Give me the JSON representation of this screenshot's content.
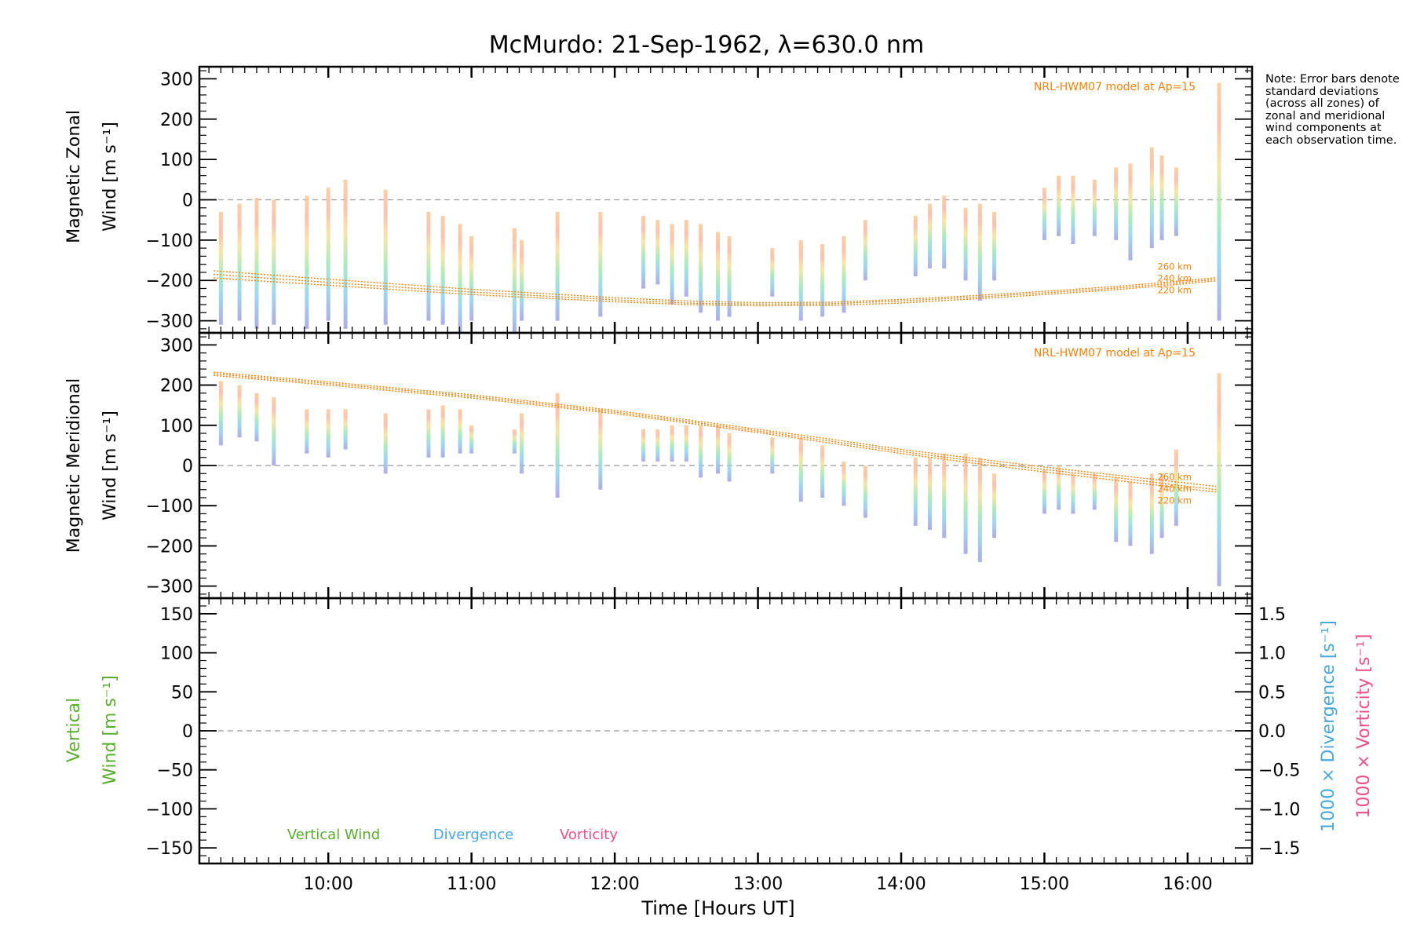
{
  "title": "McMurdo: 21-Sep-1962, λ=630.0 nm",
  "note": "Note: Error bars denote standard deviations (across all zones) of zonal and meridional wind components at each observation time.",
  "colors": {
    "model": "#f5820a",
    "vertical": "#5aad2e",
    "divergence": "#4aa8d8",
    "vorticity": "#ee4f83",
    "zero_line": "#999999"
  },
  "chart_data": [
    {
      "type": "scatter",
      "panel": "zonal",
      "ylabel_line1": "Magnetic Zonal",
      "ylabel_line2": "Wind [m s⁻¹]",
      "ylim": [
        -330,
        330
      ],
      "yticks": [
        300,
        200,
        100,
        0,
        -100,
        -200,
        -300
      ],
      "ytick_labels": [
        "300",
        "200",
        "100",
        "0",
        "−100",
        "−200",
        "−300"
      ],
      "model_label": "NRL-HWM07 model at Ap=15",
      "model_curve_labels": [
        "260 km",
        "240 km",
        "220 km"
      ],
      "model_curves": [
        {
          "name": "260 km",
          "x": [
            9.2,
            10,
            11,
            12,
            12.5,
            13,
            13.5,
            14,
            14.5,
            15,
            15.5,
            16,
            16.2
          ],
          "y": [
            -176,
            -197,
            -222,
            -243,
            -251,
            -255,
            -254,
            -247,
            -238,
            -227,
            -215,
            -200,
            -193
          ]
        },
        {
          "name": "240 km",
          "x": [
            9.2,
            10,
            11,
            12,
            12.5,
            13,
            13.5,
            14,
            14.5,
            15,
            15.5,
            16,
            16.2
          ],
          "y": [
            -185,
            -205,
            -229,
            -248,
            -256,
            -259,
            -258,
            -251,
            -242,
            -231,
            -219,
            -204,
            -197
          ]
        },
        {
          "name": "220 km",
          "x": [
            9.2,
            10,
            11,
            12,
            12.5,
            13,
            13.5,
            14,
            14.5,
            15,
            15.5,
            16,
            16.2
          ],
          "y": [
            -194,
            -212,
            -235,
            -253,
            -260,
            -263,
            -262,
            -256,
            -246,
            -235,
            -223,
            -208,
            -201
          ]
        }
      ],
      "observations": [
        {
          "t": 9.25,
          "low": -310,
          "high": -30
        },
        {
          "t": 9.38,
          "low": -300,
          "high": -10
        },
        {
          "t": 9.5,
          "low": -320,
          "high": 5
        },
        {
          "t": 9.62,
          "low": -310,
          "high": 0
        },
        {
          "t": 9.85,
          "low": -320,
          "high": 10
        },
        {
          "t": 10.0,
          "low": -300,
          "high": 30
        },
        {
          "t": 10.12,
          "low": -320,
          "high": 50
        },
        {
          "t": 10.4,
          "low": -310,
          "high": 25
        },
        {
          "t": 10.7,
          "low": -300,
          "high": -30
        },
        {
          "t": 10.8,
          "low": -310,
          "high": -40
        },
        {
          "t": 10.92,
          "low": -330,
          "high": -60
        },
        {
          "t": 11.0,
          "low": -300,
          "high": -90
        },
        {
          "t": 11.3,
          "low": -330,
          "high": -70
        },
        {
          "t": 11.35,
          "low": -300,
          "high": -100
        },
        {
          "t": 11.6,
          "low": -300,
          "high": -30
        },
        {
          "t": 11.9,
          "low": -290,
          "high": -30
        },
        {
          "t": 12.2,
          "low": -220,
          "high": -40
        },
        {
          "t": 12.3,
          "low": -210,
          "high": -50
        },
        {
          "t": 12.4,
          "low": -260,
          "high": -60
        },
        {
          "t": 12.5,
          "low": -240,
          "high": -50
        },
        {
          "t": 12.6,
          "low": -280,
          "high": -60
        },
        {
          "t": 12.72,
          "low": -300,
          "high": -80
        },
        {
          "t": 12.8,
          "low": -290,
          "high": -90
        },
        {
          "t": 13.1,
          "low": -240,
          "high": -120
        },
        {
          "t": 13.3,
          "low": -300,
          "high": -100
        },
        {
          "t": 13.45,
          "low": -290,
          "high": -110
        },
        {
          "t": 13.6,
          "low": -280,
          "high": -90
        },
        {
          "t": 13.75,
          "low": -200,
          "high": -50
        },
        {
          "t": 14.1,
          "low": -190,
          "high": -40
        },
        {
          "t": 14.2,
          "low": -170,
          "high": -10
        },
        {
          "t": 14.3,
          "low": -170,
          "high": 10
        },
        {
          "t": 14.45,
          "low": -200,
          "high": -20
        },
        {
          "t": 14.55,
          "low": -250,
          "high": -10
        },
        {
          "t": 14.65,
          "low": -200,
          "high": -30
        },
        {
          "t": 15.0,
          "low": -100,
          "high": 30
        },
        {
          "t": 15.1,
          "low": -90,
          "high": 60
        },
        {
          "t": 15.2,
          "low": -110,
          "high": 60
        },
        {
          "t": 15.35,
          "low": -90,
          "high": 50
        },
        {
          "t": 15.5,
          "low": -100,
          "high": 80
        },
        {
          "t": 15.6,
          "low": -150,
          "high": 90
        },
        {
          "t": 15.75,
          "low": -120,
          "high": 130
        },
        {
          "t": 15.82,
          "low": -100,
          "high": 110
        },
        {
          "t": 15.92,
          "low": -90,
          "high": 80
        },
        {
          "t": 16.22,
          "low": -300,
          "high": 290
        }
      ]
    },
    {
      "type": "scatter",
      "panel": "meridional",
      "ylabel_line1": "Magnetic Meridional",
      "ylabel_line2": "Wind [m s⁻¹]",
      "ylim": [
        -330,
        330
      ],
      "yticks": [
        300,
        200,
        100,
        0,
        -100,
        -200,
        -300
      ],
      "ytick_labels": [
        "300",
        "200",
        "100",
        "0",
        "−100",
        "−200",
        "−300"
      ],
      "model_label": "NRL-HWM07 model at Ap=15",
      "model_curve_labels": [
        "260 km",
        "240 km",
        "220 km"
      ],
      "model_curves": [
        {
          "name": "260 km",
          "x": [
            9.2,
            10,
            11,
            12,
            12.5,
            13,
            13.5,
            14,
            14.5,
            15,
            15.5,
            16,
            16.2
          ],
          "y": [
            232,
            208,
            176,
            137,
            114,
            90,
            66,
            40,
            18,
            -4,
            -24,
            -44,
            -52
          ]
        },
        {
          "name": "240 km",
          "x": [
            9.2,
            10,
            11,
            12,
            12.5,
            13,
            13.5,
            14,
            14.5,
            15,
            15.5,
            16,
            16.2
          ],
          "y": [
            228,
            204,
            172,
            133,
            110,
            86,
            61,
            35,
            12,
            -10,
            -30,
            -52,
            -60
          ]
        },
        {
          "name": "220 km",
          "x": [
            9.2,
            10,
            11,
            12,
            12.5,
            13,
            13.5,
            14,
            14.5,
            15,
            15.5,
            16,
            16.2
          ],
          "y": [
            224,
            200,
            168,
            129,
            106,
            82,
            56,
            30,
            6,
            -16,
            -37,
            -58,
            -66
          ]
        }
      ],
      "observations": [
        {
          "t": 9.25,
          "low": 50,
          "high": 210
        },
        {
          "t": 9.38,
          "low": 70,
          "high": 200
        },
        {
          "t": 9.5,
          "low": 60,
          "high": 180
        },
        {
          "t": 9.62,
          "low": 0,
          "high": 170
        },
        {
          "t": 9.85,
          "low": 30,
          "high": 140
        },
        {
          "t": 10.0,
          "low": 20,
          "high": 140
        },
        {
          "t": 10.12,
          "low": 40,
          "high": 140
        },
        {
          "t": 10.4,
          "low": -20,
          "high": 130
        },
        {
          "t": 10.7,
          "low": 20,
          "high": 140
        },
        {
          "t": 10.8,
          "low": 20,
          "high": 150
        },
        {
          "t": 10.92,
          "low": 30,
          "high": 140
        },
        {
          "t": 11.0,
          "low": 30,
          "high": 100
        },
        {
          "t": 11.3,
          "low": 30,
          "high": 90
        },
        {
          "t": 11.35,
          "low": -20,
          "high": 130
        },
        {
          "t": 11.6,
          "low": -80,
          "high": 180
        },
        {
          "t": 11.9,
          "low": -60,
          "high": 140
        },
        {
          "t": 12.2,
          "low": 10,
          "high": 90
        },
        {
          "t": 12.3,
          "low": 10,
          "high": 90
        },
        {
          "t": 12.4,
          "low": 10,
          "high": 100
        },
        {
          "t": 12.5,
          "low": 10,
          "high": 100
        },
        {
          "t": 12.6,
          "low": -30,
          "high": 100
        },
        {
          "t": 12.72,
          "low": -20,
          "high": 100
        },
        {
          "t": 12.8,
          "low": -40,
          "high": 80
        },
        {
          "t": 13.1,
          "low": -20,
          "high": 70
        },
        {
          "t": 13.3,
          "low": -90,
          "high": 70
        },
        {
          "t": 13.45,
          "low": -80,
          "high": 50
        },
        {
          "t": 13.6,
          "low": -100,
          "high": 10
        },
        {
          "t": 13.75,
          "low": -130,
          "high": 0
        },
        {
          "t": 14.1,
          "low": -150,
          "high": 20
        },
        {
          "t": 14.2,
          "low": -160,
          "high": 20
        },
        {
          "t": 14.3,
          "low": -180,
          "high": 30
        },
        {
          "t": 14.45,
          "low": -220,
          "high": 30
        },
        {
          "t": 14.55,
          "low": -240,
          "high": 20
        },
        {
          "t": 14.65,
          "low": -180,
          "high": -20
        },
        {
          "t": 15.0,
          "low": -120,
          "high": -10
        },
        {
          "t": 15.1,
          "low": -110,
          "high": 0
        },
        {
          "t": 15.2,
          "low": -120,
          "high": -20
        },
        {
          "t": 15.35,
          "low": -110,
          "high": -20
        },
        {
          "t": 15.5,
          "low": -190,
          "high": -30
        },
        {
          "t": 15.6,
          "low": -200,
          "high": -40
        },
        {
          "t": 15.75,
          "low": -220,
          "high": -20
        },
        {
          "t": 15.82,
          "low": -180,
          "high": -20
        },
        {
          "t": 15.92,
          "low": -150,
          "high": 40
        },
        {
          "t": 16.22,
          "low": -300,
          "high": 230
        }
      ]
    },
    {
      "type": "line",
      "panel": "vertical",
      "ylabel_line1": "Vertical",
      "ylabel_line2": "Wind [m s⁻¹]",
      "ylim": [
        -170,
        170
      ],
      "yticks": [
        150,
        100,
        50,
        0,
        -50,
        -100,
        -150
      ],
      "ytick_labels": [
        "150",
        "100",
        "50",
        "0",
        "−50",
        "−100",
        "−150"
      ],
      "y2lim": [
        -1.7,
        1.7
      ],
      "y2ticks": [
        1.5,
        1.0,
        0.5,
        0.0,
        -0.5,
        -1.0,
        -1.5
      ],
      "y2tick_labels": [
        "1.5",
        "1.0",
        "0.5",
        "0.0",
        "−0.5",
        "−1.0",
        "−1.5"
      ],
      "y2label_divergence": "1000 × Divergence [s⁻¹]",
      "y2label_vorticity": "1000 × Vorticity [s⁻¹]",
      "legend": [
        "Vertical Wind",
        "Divergence",
        "Vorticity"
      ],
      "series": []
    }
  ],
  "x_axis": {
    "xlim": [
      9.1,
      16.45
    ],
    "ticks": [
      10,
      11,
      12,
      13,
      14,
      15,
      16
    ],
    "tick_labels": [
      "10:00",
      "11:00",
      "12:00",
      "13:00",
      "14:00",
      "15:00",
      "16:00"
    ],
    "label": "Time [Hours UT]"
  }
}
